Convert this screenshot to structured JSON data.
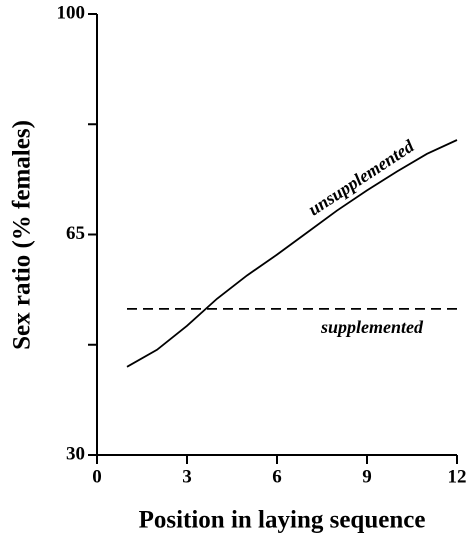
{
  "chart_data": {
    "type": "line",
    "x_label": "Position in laying sequence",
    "y_label": "Sex ratio (% females)",
    "series": [
      {
        "name": "unsupplemented",
        "color": "#000000",
        "dash": false,
        "x": [
          1,
          2,
          3,
          4,
          5,
          6,
          7,
          8,
          9,
          10,
          11,
          12
        ],
        "values": [
          44,
          46.7,
          50.5,
          54.8,
          58.5,
          61.8,
          65.3,
          68.8,
          72,
          75,
          77.8,
          80
        ]
      },
      {
        "name": "supplemented",
        "color": "#000000",
        "dash": true,
        "x": [
          1,
          12
        ],
        "values": [
          53.2,
          53.2
        ]
      }
    ],
    "xlim": [
      0,
      12
    ],
    "xticks": [
      0,
      3,
      6,
      9,
      12
    ],
    "ylim": [
      30,
      100
    ],
    "yticks": [
      30,
      65,
      100
    ],
    "yminor_ticks": [
      47.5,
      82.5
    ],
    "grid": false
  }
}
